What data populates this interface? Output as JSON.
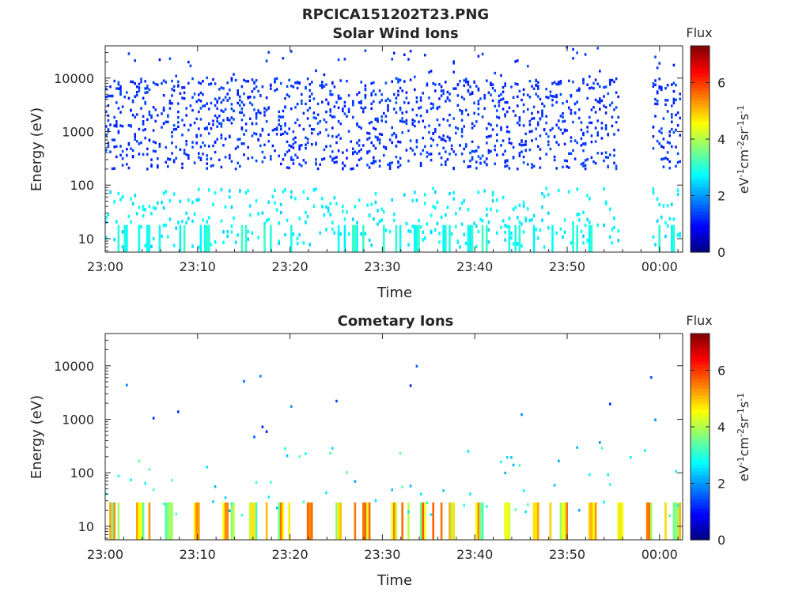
{
  "figure": {
    "title": "RPCICA151202T23.PNG"
  },
  "colorbar": {
    "label": "Flux",
    "ticks": [
      0,
      2,
      4,
      6
    ],
    "range": [
      0,
      7.3
    ],
    "colormap": "jet"
  },
  "chart_data": [
    {
      "type": "heatmap",
      "title": "Solar Wind Ions",
      "xlabel": "Time",
      "ylabel": "Energy (eV)",
      "x_ticks": [
        "23:00",
        "23:10",
        "23:20",
        "23:30",
        "23:40",
        "23:50",
        "00:00"
      ],
      "x_range_minutes": [
        0,
        62.5
      ],
      "y_ticks": [
        10,
        100,
        1000,
        10000
      ],
      "y_range": [
        5.6,
        40000
      ],
      "y_scale": "log",
      "data_gap_minutes": [
        55.8,
        59.3
      ],
      "colorbar_units": "eV^-1 cm^-2 sr^-1 s^-1"
    },
    {
      "type": "heatmap",
      "title": "Cometary Ions",
      "xlabel": "Time",
      "ylabel": "Energy (eV)",
      "x_ticks": [
        "23:00",
        "23:10",
        "23:20",
        "23:30",
        "23:40",
        "23:50",
        "00:00"
      ],
      "x_range_minutes": [
        0,
        62.5
      ],
      "y_ticks": [
        10,
        100,
        1000,
        10000
      ],
      "y_range": [
        5.6,
        40000
      ],
      "y_scale": "log",
      "colorbar_units": "eV^-1 cm^-2 sr^-1 s^-1"
    }
  ]
}
